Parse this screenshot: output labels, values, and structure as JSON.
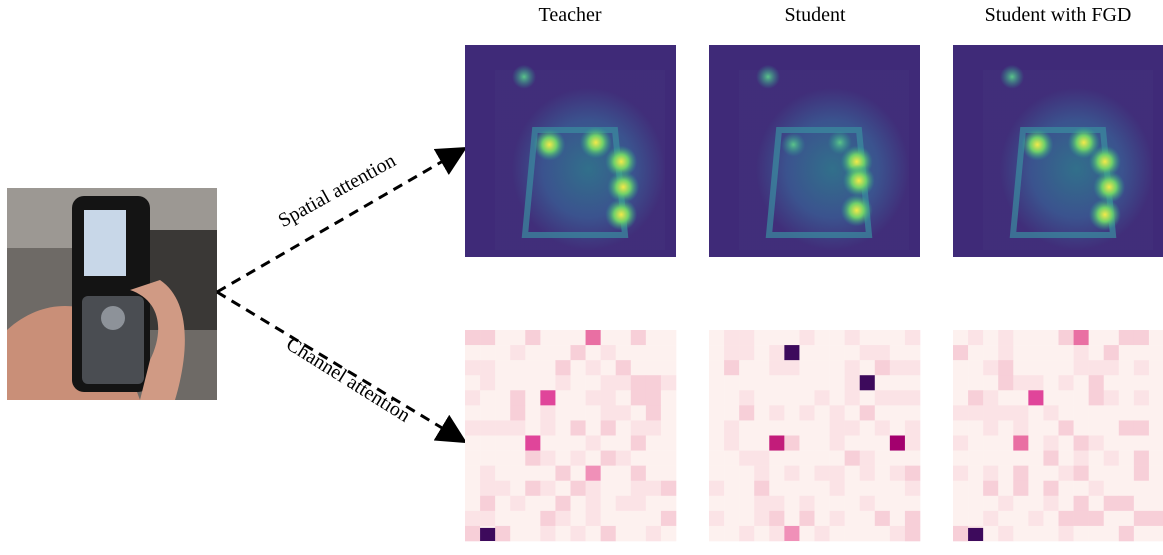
{
  "figure": {
    "columns": [
      "Teacher",
      "Student",
      "Student with FGD"
    ],
    "branches": [
      "Spatial attention",
      "Channel attention"
    ]
  }
}
